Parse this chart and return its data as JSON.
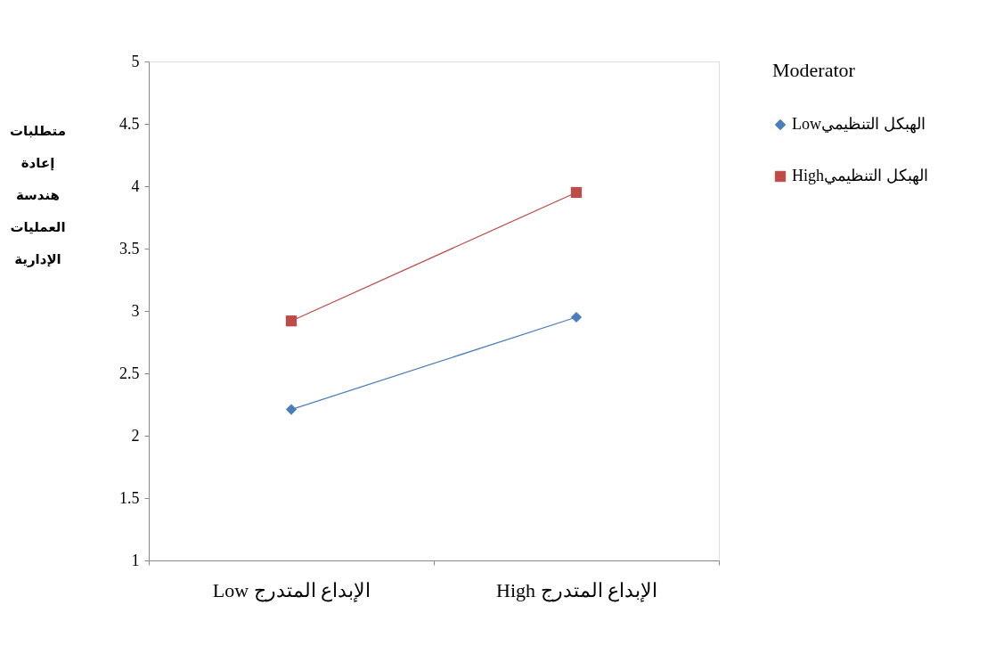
{
  "chart_data": {
    "type": "line",
    "ylabel": "متطلبات إعادة هندسة العمليات الإدارية",
    "legend_title": "Moderator",
    "categories": [
      "Low الإبداع المتدرج",
      "High الإبداع المتدرج"
    ],
    "series": [
      {
        "name": "Lowالهبكل التنظيمي",
        "color": "#4a7ebb",
        "marker": "diamond",
        "values": [
          2.21,
          2.95
        ]
      },
      {
        "name": "Highالهبكل التنظيمي",
        "color": "#be4b48",
        "marker": "square",
        "values": [
          2.92,
          3.95
        ]
      }
    ],
    "ylim": [
      1,
      5
    ],
    "yticks": [
      1,
      1.5,
      2,
      2.5,
      3,
      3.5,
      4,
      4.5,
      5
    ],
    "grid": false,
    "legend": "right",
    "line_style": "solid"
  }
}
